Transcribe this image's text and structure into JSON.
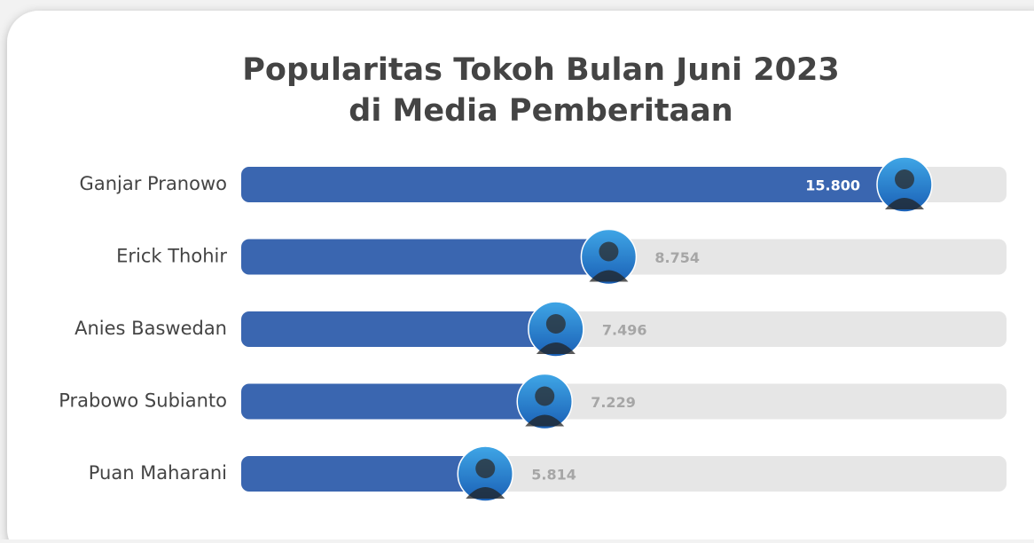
{
  "chart_data": {
    "type": "bar",
    "orientation": "horizontal",
    "title_lines": [
      "Popularitas Tokoh Bulan Juni 2023",
      "di Media Pemberitaan"
    ],
    "categories": [
      "Ganjar Pranowo",
      "Erick Thohir",
      "Anies Baswedan",
      "Prabowo Subianto",
      "Puan Maharani"
    ],
    "values": [
      15800,
      8754,
      7496,
      7229,
      5814
    ],
    "value_labels": [
      "15.800",
      "8.754",
      "7.496",
      "7.229",
      "5.814"
    ],
    "color": "#3a66b0",
    "track_color": "#e6e6e6"
  }
}
